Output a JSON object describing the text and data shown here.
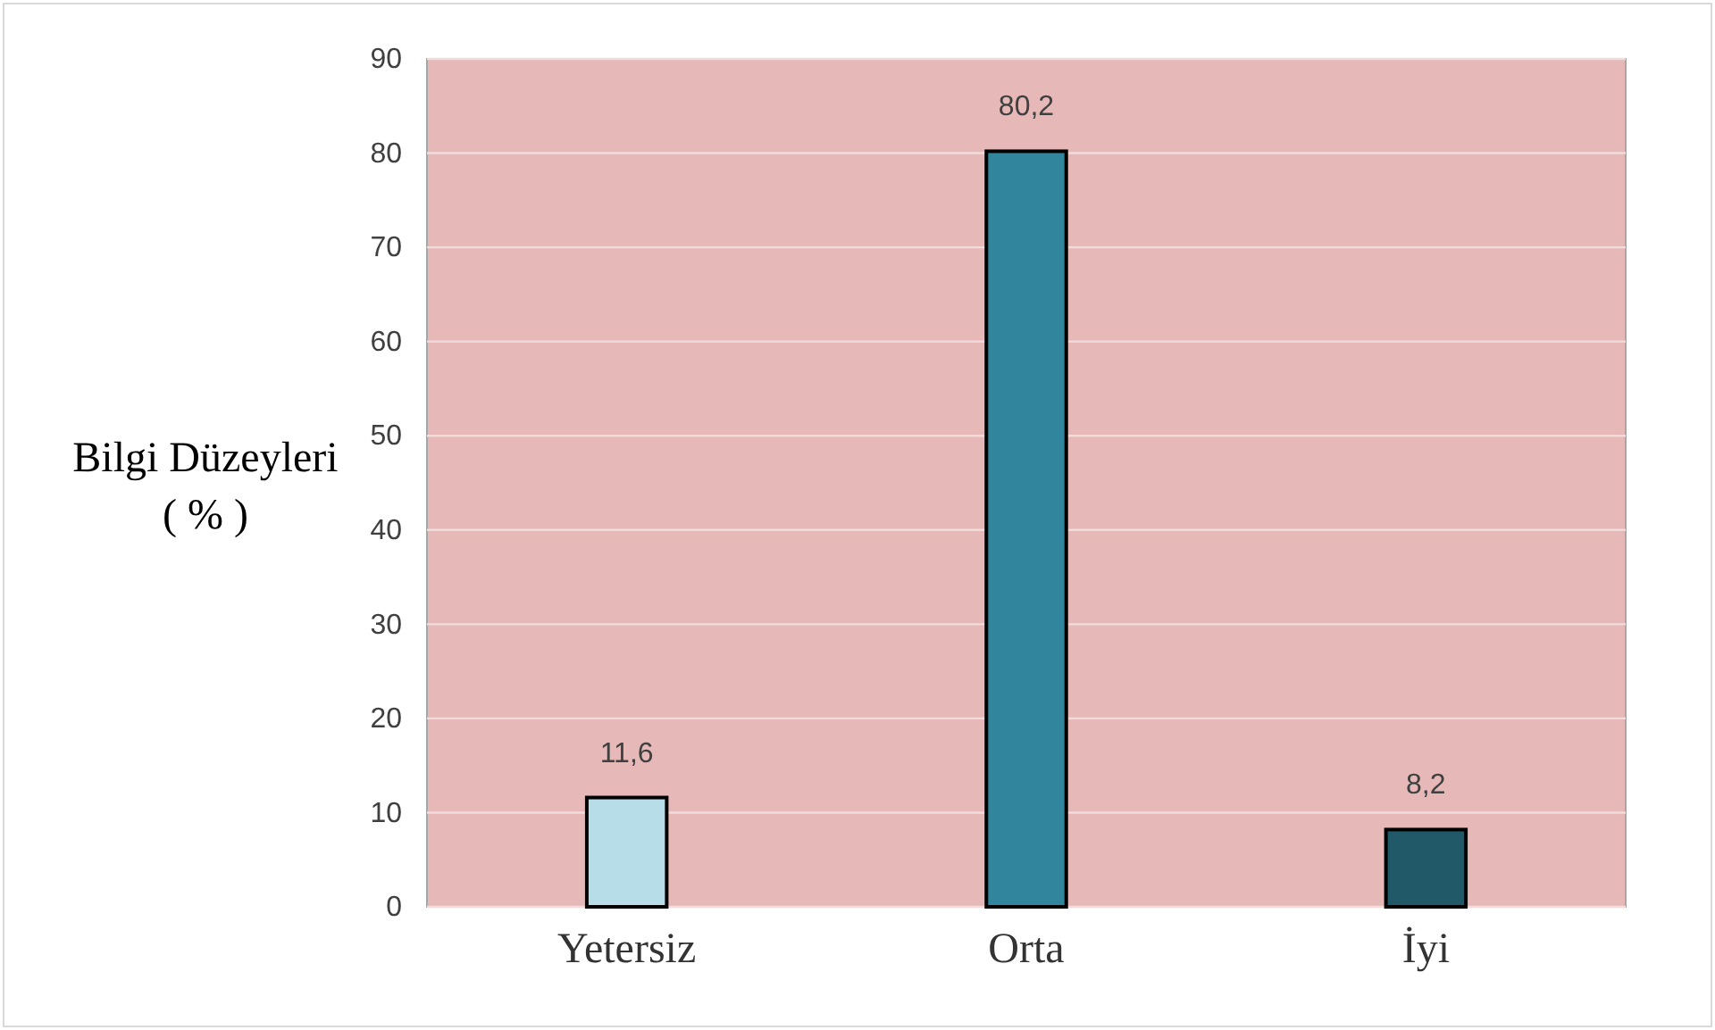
{
  "chart_data": {
    "type": "bar",
    "categories": [
      "Yetersiz",
      "Orta",
      "İyi"
    ],
    "values": [
      11.6,
      80.2,
      8.2
    ],
    "colors": [
      "#b7dee8",
      "#31859c",
      "#215968"
    ],
    "ylabel": "Bilgi Düzeyleri\n( % )",
    "value_labels": [
      "11,6",
      "80,2",
      "8,2"
    ],
    "ylim": [
      0,
      90
    ],
    "yticks": [
      0,
      10,
      20,
      30,
      40,
      50,
      60,
      70,
      80,
      90
    ],
    "grid": "y"
  }
}
